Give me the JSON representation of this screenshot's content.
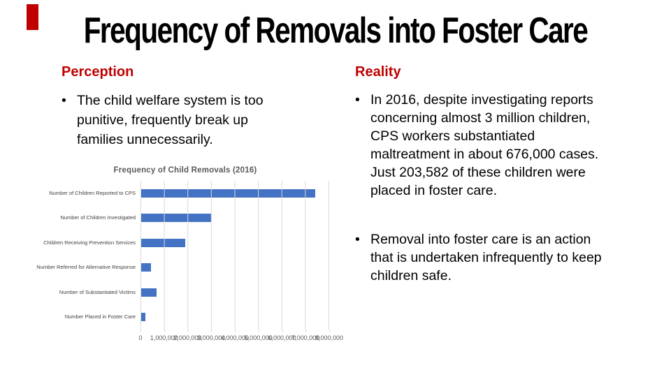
{
  "colors": {
    "accent_red": "#c00000",
    "bar_blue": "#4472c4",
    "gridline_gray": "#d9d9d9",
    "chart_text_gray": "#595959"
  },
  "slide": {
    "title": "Frequency of Removals into Foster Care"
  },
  "perception": {
    "heading": "Perception",
    "bullet_glyph": "•",
    "bullets": [
      "The child welfare system is too\npunitive, frequently break up\nfamilies unnecessarily."
    ]
  },
  "reality": {
    "heading": "Reality",
    "bullet_glyph": "•",
    "bullets": [
      "In 2016, despite investigating reports\nconcerning almost 3 million children,\nCPS workers substantiated\nmaltreatment in about 676,000 cases.\nJust 203,582 of these children were\nplaced in foster care.",
      "Removal into foster care is an action\nthat is undertaken infrequently to keep\nchildren safe."
    ]
  },
  "chart_data": {
    "type": "bar",
    "orientation": "horizontal",
    "title": "Frequency of Child Removals (2016)",
    "categories": [
      "Number of Children Reported to CPS",
      "Number of Children Investigated",
      "Children Receiving Prevention Services",
      "Number Referred for Alternative Response",
      "Number of Substantiated Victims",
      "Number Placed in Foster Care"
    ],
    "values": [
      7400000,
      3000000,
      1900000,
      450000,
      676000,
      203582
    ],
    "xlim": [
      0,
      8000000
    ],
    "x_tick_labels": [
      "0",
      "1,000,000",
      "2,000,000",
      "3,000,000",
      "4,000,000",
      "5,000,000",
      "6,000,000",
      "7,000,000",
      "8,000,000"
    ],
    "grid": true,
    "legend": false
  }
}
